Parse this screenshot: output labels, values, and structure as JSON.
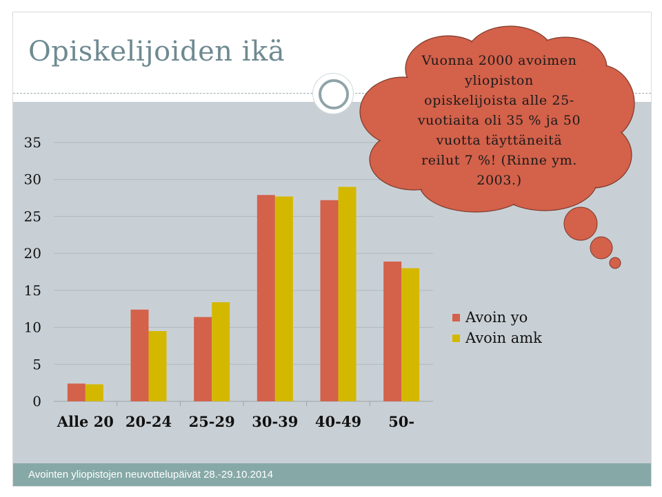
{
  "slide": {
    "title": "Opiskelijoiden ikä",
    "footer": "Avointen yliopistojen neuvottelupäivät 28.-29.10.2014"
  },
  "callout": {
    "lines": [
      "Vuonna 2000 avoimen",
      "yliopiston",
      "opiskelijoista alle 25-",
      "vuotiaita oli 35 % ja 50",
      "vuotta täyttäneitä",
      "reilut 7 %! (Rinne ym.",
      "2003.)"
    ],
    "color": "#d4614a"
  },
  "chart_data": {
    "type": "bar",
    "categories": [
      "Alle 20",
      "20-24",
      "25-29",
      "30-39",
      "40-49",
      "50-"
    ],
    "series": [
      {
        "name": "Avoin yo",
        "values": [
          2.4,
          12.4,
          11.4,
          27.9,
          27.2,
          18.9
        ],
        "color": "#d4614a"
      },
      {
        "name": "Avoin amk",
        "values": [
          2.3,
          9.5,
          13.4,
          27.7,
          29.0,
          18.0
        ],
        "color": "#d4b800"
      }
    ],
    "yticks": [
      0,
      5,
      10,
      15,
      20,
      25,
      30,
      35
    ],
    "ylim": [
      0,
      35
    ],
    "grid": true,
    "legend_position": "right",
    "title": "",
    "xlabel": "",
    "ylabel": ""
  }
}
